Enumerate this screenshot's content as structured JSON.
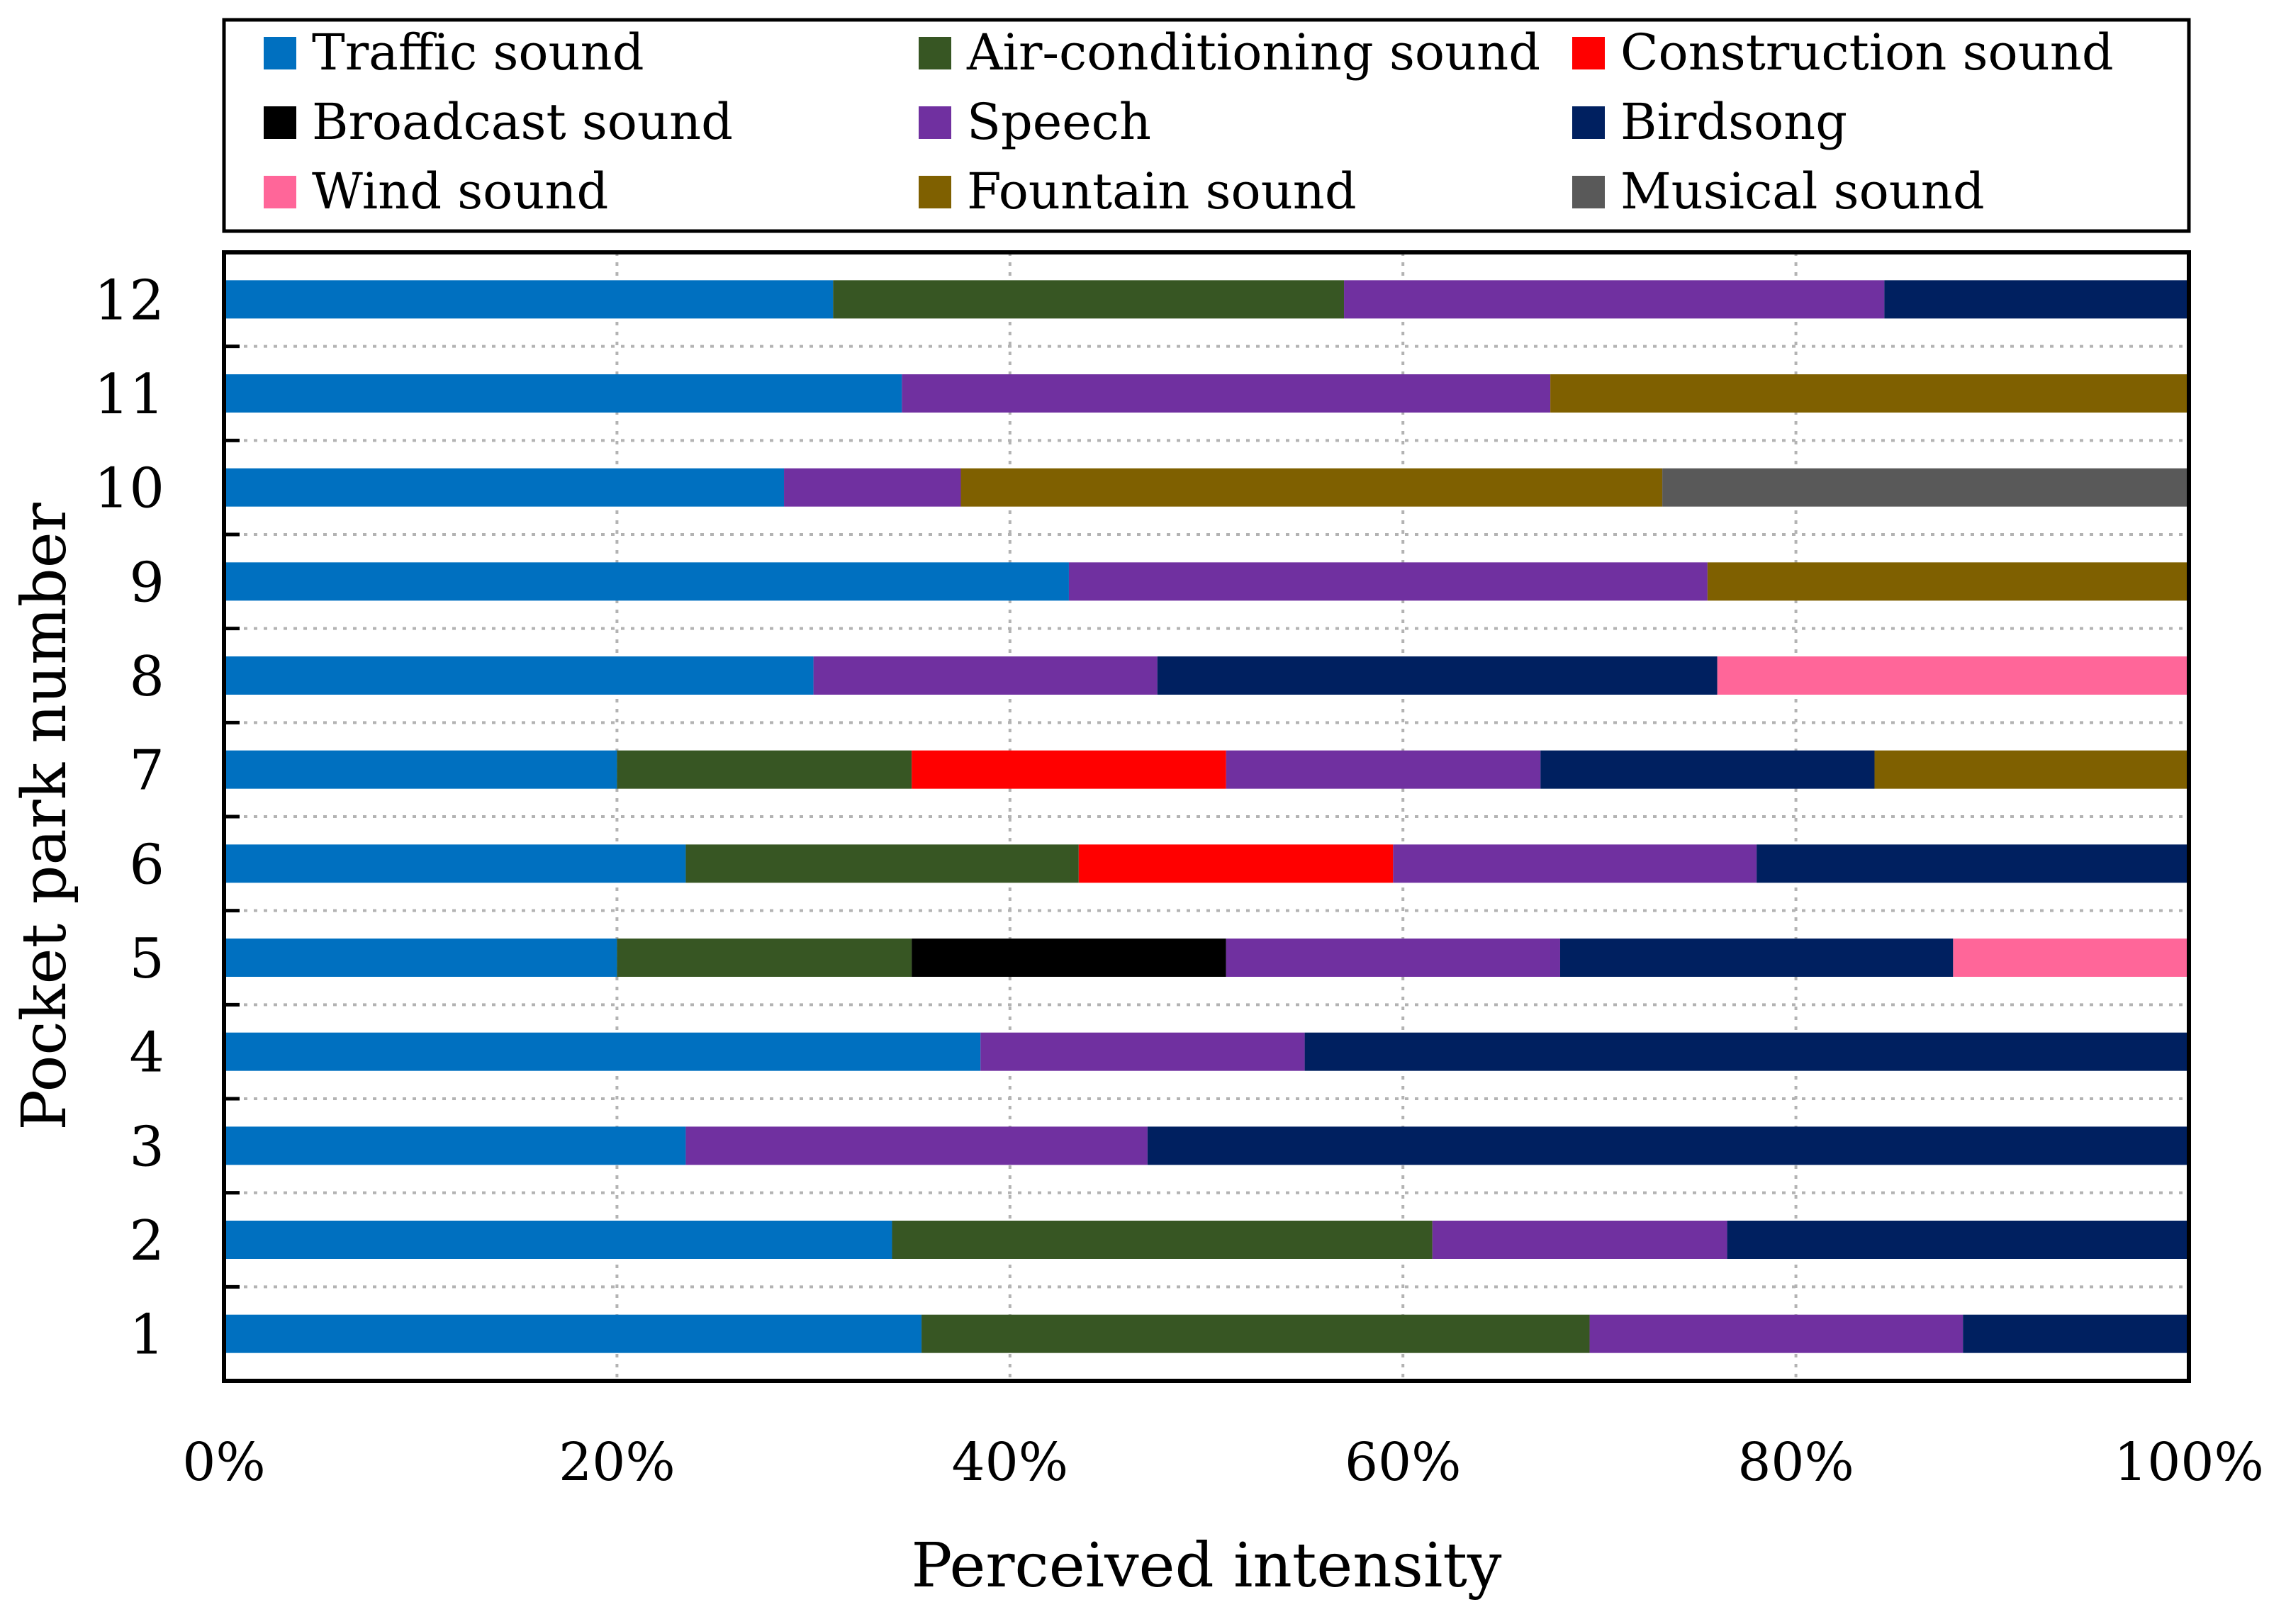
{
  "chart_data": {
    "type": "bar",
    "orientation": "horizontal",
    "stacked": true,
    "xlabel": "Perceived intensity",
    "ylabel": "Pocket park number",
    "xlim": [
      0,
      100
    ],
    "x_ticks": [
      "0%",
      "20%",
      "40%",
      "60%",
      "80%",
      "100%"
    ],
    "categories": [
      "1",
      "2",
      "3",
      "4",
      "5",
      "6",
      "7",
      "8",
      "9",
      "10",
      "11",
      "12"
    ],
    "grid": true,
    "legend_position": "top",
    "series": [
      {
        "name": "Traffic sound",
        "color": "#0070C0",
        "values": [
          35.5,
          34,
          23.5,
          38.5,
          20,
          23.5,
          20,
          30,
          43,
          28.5,
          34.5,
          31
        ]
      },
      {
        "name": "Air-conditioning sound",
        "color": "#375623",
        "values": [
          34,
          27.5,
          0,
          0,
          15,
          20,
          15,
          0,
          0,
          0,
          0,
          26
        ]
      },
      {
        "name": "Construction sound",
        "color": "#FF0000",
        "values": [
          0,
          0,
          0,
          0,
          0,
          16,
          16,
          0,
          0,
          0,
          0,
          0
        ]
      },
      {
        "name": "Broadcast sound",
        "color": "#000000",
        "values": [
          0,
          0,
          0,
          0,
          16,
          0,
          0,
          0,
          0,
          0,
          0,
          0
        ]
      },
      {
        "name": "Speech",
        "color": "#7030A0",
        "values": [
          19,
          15,
          23.5,
          16.5,
          17,
          18.5,
          16,
          17.5,
          32.5,
          9,
          33,
          27.5
        ]
      },
      {
        "name": "Birdsong",
        "color": "#002060",
        "values": [
          11.5,
          23.5,
          53,
          45,
          20,
          22,
          17,
          28.5,
          0,
          0,
          0,
          15.5
        ]
      },
      {
        "name": "Wind sound",
        "color": "#FF6699",
        "values": [
          0,
          0,
          0,
          0,
          12,
          0,
          0,
          24,
          0,
          0,
          0,
          0
        ]
      },
      {
        "name": "Fountain sound",
        "color": "#7F6000",
        "values": [
          0,
          0,
          0,
          0,
          0,
          0,
          16,
          0,
          24.5,
          35.7,
          32.5,
          0
        ]
      },
      {
        "name": "Musical sound",
        "color": "#595959",
        "values": [
          0,
          0,
          0,
          0,
          0,
          0,
          0,
          0,
          0,
          26.8,
          0,
          0
        ]
      }
    ]
  }
}
